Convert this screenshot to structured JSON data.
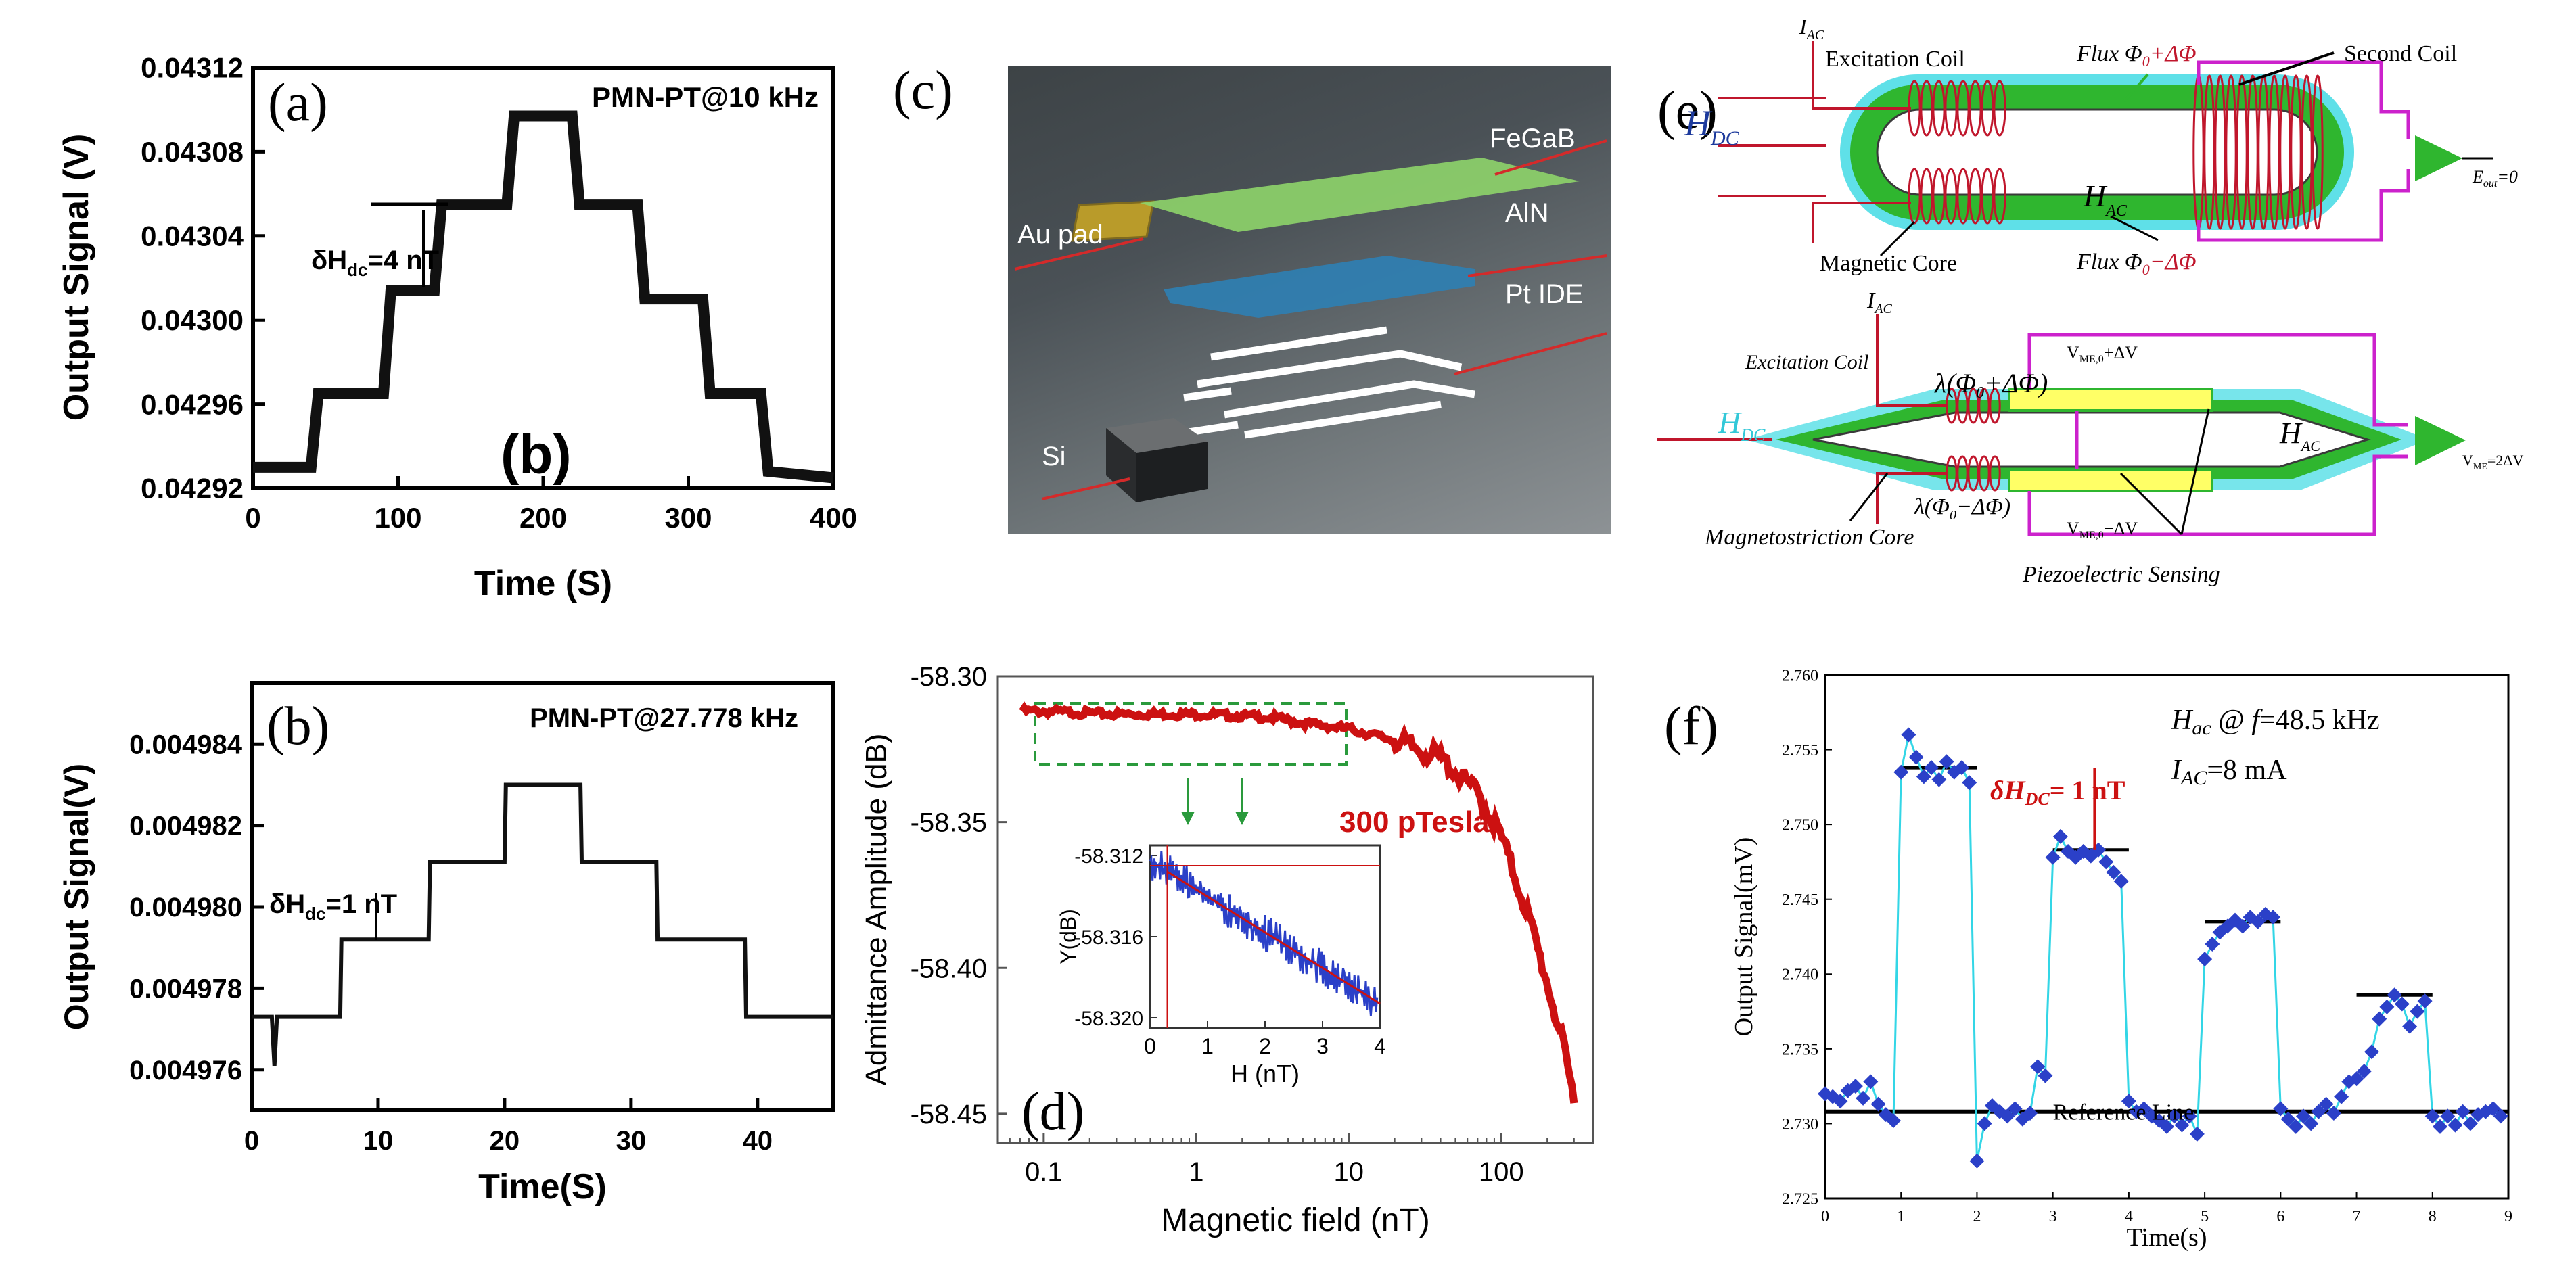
{
  "colors": {
    "axis": "#000000",
    "trace_black": "#111111",
    "trace_red": "#cc1111",
    "trace_blue": "#2b40c8",
    "trace_cyan": "#33d6e6",
    "dash_green": "#2a9a3c",
    "coil_red": "#c0162c",
    "core_green": "#2fb62f",
    "magenta": "#cc22cc"
  },
  "panel_a": {
    "label": "(a)",
    "annotation": "PMN-PT@10 kHz",
    "step_label": "δH",
    "step_sub": "dc",
    "step_value": "=4 nT",
    "bold_label": "(b)",
    "xlabel": "Time (S)",
    "ylabel": "Output Signal (V)"
  },
  "panel_b": {
    "label": "(b)",
    "annotation": "PMN-PT@27.778 kHz",
    "step_label": "δH",
    "step_sub": "dc",
    "step_value": "=1 nT",
    "xlabel": "Time(S)",
    "ylabel": "Output Signal(V)"
  },
  "panel_c": {
    "label": "(c)",
    "layers": [
      "FeGaB",
      "AlN",
      "Pt IDE",
      "Au pad",
      "Si"
    ]
  },
  "panel_d": {
    "label": "(d)",
    "annotation": "300 pTesla",
    "xlabel": "Magnetic field (nT)",
    "ylabel": "Admittance Amplitude (dB)",
    "inset": {
      "xlabel": "H (nT)",
      "ylabel": "Y(dB)",
      "x_ticks": [
        "0",
        "1",
        "2",
        "3",
        "4"
      ],
      "y_ticks": [
        "-58.312",
        "-58.316",
        "-58.320"
      ]
    }
  },
  "panel_e": {
    "label": "(e)",
    "top": {
      "iac": "I",
      "iac_sub": "AC",
      "excitation_coil": "Excitation Coil",
      "flux_plus": "Flux Φ",
      "flux_plus_tail": "+ΔΦ",
      "second_coil": "Second Coil",
      "hdc": "H",
      "hdc_sub": "DC",
      "hac": "H",
      "hac_sub": "AC",
      "eout": "E",
      "eout_sub": "out",
      "eout_tail": "=0",
      "magnetic_core": "Magnetic Core",
      "flux_minus": "Flux Φ",
      "flux_minus_tail": "−ΔΦ",
      "phi_sub": "0"
    },
    "bottom": {
      "iac": "I",
      "iac_sub": "AC",
      "excitation_coil": "Excitation Coil",
      "lambda_plus": "λ(Φ",
      "lambda_plus_tail": "+ΔΦ)",
      "lambda_minus": "λ(Φ",
      "lambda_minus_tail": "−ΔΦ)",
      "phi_sub": "0",
      "v_plus": "V",
      "v_plus_sub": "ME,0",
      "v_plus_tail": "+ΔV",
      "v_minus": "V",
      "v_minus_sub": "ME,0",
      "v_minus_tail": "−ΔV",
      "hdc": "H",
      "hdc_sub": "DC",
      "hac": "H",
      "hac_sub": "AC",
      "vout": "V",
      "vout_sub": "ME",
      "vout_tail": "=2ΔV",
      "core": "Magnetostriction Core",
      "sensing": "Piezoelectric Sensing"
    }
  },
  "panel_f": {
    "label": "(f)",
    "hac_line_h": "H",
    "hac_line_sub": "ac",
    "hac_line_tail": " @ ",
    "hac_line_f": "f",
    "hac_line_value": "=48.5 kHz",
    "iac_line_i": "I",
    "iac_line_sub": "AC",
    "iac_line_value": "=8 mA",
    "step_prefix": "δH",
    "step_sub": "DC",
    "step_value": "= 1 nT",
    "reference": "Reference Line",
    "xlabel": "Time(s)",
    "ylabel": "Output Signal(mV)"
  },
  "chart_data": [
    {
      "id": "a",
      "type": "line",
      "title": "PMN-PT@10 kHz",
      "xlabel": "Time (S)",
      "ylabel": "Output Signal (V)",
      "xlim": [
        0,
        400
      ],
      "ylim": [
        0.04292,
        0.04312
      ],
      "x_ticks": [
        0,
        100,
        200,
        300,
        400
      ],
      "x_tick_labels": [
        "0",
        "100",
        "200",
        "300",
        "400"
      ],
      "y_ticks": [
        0.04292,
        0.04296,
        0.043,
        0.04304,
        0.04308,
        0.04312
      ],
      "y_tick_labels": [
        "0.04292",
        "0.04296",
        "0.04300",
        "0.04304",
        "0.04308",
        "0.04312"
      ],
      "x": [
        0,
        40,
        45,
        90,
        95,
        125,
        130,
        150,
        155,
        175,
        180,
        220,
        225,
        265,
        270,
        310,
        315,
        350,
        355,
        400
      ],
      "y": [
        0.04293,
        0.04293,
        0.042965,
        0.042965,
        0.043014,
        0.043014,
        0.043055,
        0.043055,
        0.043055,
        0.043055,
        0.043097,
        0.043097,
        0.043055,
        0.043055,
        0.04301,
        0.04301,
        0.042965,
        0.042965,
        0.042928,
        0.042925
      ]
    },
    {
      "id": "b",
      "type": "line",
      "title": "PMN-PT@27.778 kHz",
      "xlabel": "Time(S)",
      "ylabel": "Output Signal(V)",
      "xlim": [
        0,
        46
      ],
      "ylim": [
        0.004975,
        0.0049855
      ],
      "x_ticks": [
        0,
        10,
        20,
        30,
        40
      ],
      "x_tick_labels": [
        "0",
        "10",
        "20",
        "30",
        "40"
      ],
      "y_ticks": [
        0.004976,
        0.004978,
        0.00498,
        0.004982,
        0.004984
      ],
      "y_tick_labels": [
        "0.004976",
        "0.004978",
        "0.004980",
        "0.004982",
        "0.004984"
      ],
      "x": [
        0,
        1.6,
        1.8,
        2.0,
        7,
        7.1,
        14,
        14.1,
        20,
        20.1,
        26,
        26.1,
        32,
        32.1,
        39,
        39.1,
        46
      ],
      "y": [
        0.0049773,
        0.0049773,
        0.0049761,
        0.0049773,
        0.0049773,
        0.0049792,
        0.0049792,
        0.0049811,
        0.0049811,
        0.004983,
        0.004983,
        0.0049811,
        0.0049811,
        0.0049792,
        0.0049792,
        0.0049773,
        0.0049773
      ]
    },
    {
      "id": "d",
      "type": "line",
      "xlabel": "Magnetic field (nT)",
      "ylabel": "Admittance Amplitude (dB)",
      "xscale": "log",
      "xlim": [
        0.05,
        400
      ],
      "ylim": [
        -58.46,
        -58.3
      ],
      "x_ticks": [
        0.1,
        1,
        10,
        100
      ],
      "x_tick_labels": [
        "0.1",
        "1",
        "10",
        "100"
      ],
      "y_ticks": [
        -58.3,
        -58.35,
        -58.4,
        -58.45
      ],
      "y_tick_labels": [
        "-58.30",
        "-58.35",
        "-58.40",
        "-58.45"
      ],
      "annotation": "300 pTesla",
      "x": [
        0.065,
        0.1,
        0.3,
        1,
        3,
        5,
        10,
        20,
        40,
        70,
        100,
        150,
        200,
        250,
        300
      ],
      "y": [
        -58.312,
        -58.312,
        -58.313,
        -58.313,
        -58.314,
        -58.316,
        -58.318,
        -58.322,
        -58.328,
        -58.34,
        -58.355,
        -58.382,
        -58.405,
        -58.425,
        -58.445
      ],
      "inset": {
        "xlabel": "H (nT)",
        "ylabel": "Y(dB)",
        "xlim": [
          0,
          4
        ],
        "ylim": [
          -58.3205,
          -58.3115
        ],
        "x_ticks": [
          0,
          1,
          2,
          3,
          4
        ],
        "x_tick_labels": [
          "0",
          "1",
          "2",
          "3",
          "4"
        ],
        "y_ticks": [
          -58.312,
          -58.316,
          -58.32
        ],
        "y_tick_labels": [
          "-58.312",
          "-58.316",
          "-58.320"
        ],
        "fit_x": [
          0.3,
          4.0
        ],
        "fit_y": [
          -58.3128,
          -58.3193
        ],
        "threshold_x": 0.3,
        "threshold_y": -58.3125
      }
    },
    {
      "id": "f",
      "type": "scatter",
      "xlabel": "Time(s)",
      "ylabel": "Output Signal(mV)",
      "xlim": [
        0,
        9
      ],
      "ylim": [
        2.725,
        2.76
      ],
      "x_ticks": [
        0,
        1,
        2,
        3,
        4,
        5,
        6,
        7,
        8,
        9
      ],
      "x_tick_labels": [
        "0",
        "1",
        "2",
        "3",
        "4",
        "5",
        "6",
        "7",
        "8",
        "9"
      ],
      "y_ticks": [
        2.725,
        2.73,
        2.735,
        2.74,
        2.745,
        2.75,
        2.755,
        2.76
      ],
      "y_tick_labels": [
        "2.725",
        "2.730",
        "2.735",
        "2.740",
        "2.745",
        "2.750",
        "2.755",
        "2.760"
      ],
      "reference_y": 2.7308,
      "levels": [
        {
          "x": [
            1.0,
            2.0
          ],
          "y": 2.7538
        },
        {
          "x": [
            3.0,
            4.0
          ],
          "y": 2.7483
        },
        {
          "x": [
            5.0,
            6.0
          ],
          "y": 2.7435
        },
        {
          "x": [
            7.0,
            8.0
          ],
          "y": 2.7386
        }
      ],
      "x": [
        0.0,
        0.1,
        0.2,
        0.3,
        0.4,
        0.5,
        0.6,
        0.7,
        0.8,
        0.9,
        1.0,
        1.1,
        1.2,
        1.3,
        1.4,
        1.5,
        1.6,
        1.7,
        1.8,
        1.9,
        2.0,
        2.1,
        2.2,
        2.3,
        2.4,
        2.5,
        2.6,
        2.7,
        2.8,
        2.9,
        3.0,
        3.1,
        3.2,
        3.3,
        3.4,
        3.5,
        3.6,
        3.7,
        3.8,
        3.9,
        4.0,
        4.1,
        4.2,
        4.3,
        4.4,
        4.5,
        4.6,
        4.7,
        4.8,
        4.9,
        5.0,
        5.1,
        5.2,
        5.3,
        5.4,
        5.5,
        5.6,
        5.7,
        5.8,
        5.9,
        6.0,
        6.1,
        6.2,
        6.3,
        6.4,
        6.5,
        6.6,
        6.7,
        6.8,
        6.9,
        7.0,
        7.1,
        7.2,
        7.3,
        7.4,
        7.5,
        7.6,
        7.7,
        7.8,
        7.9,
        8.0,
        8.1,
        8.2,
        8.3,
        8.4,
        8.5,
        8.6,
        8.7,
        8.8,
        8.9
      ],
      "y": [
        2.732,
        2.7318,
        2.7315,
        2.7322,
        2.7325,
        2.7317,
        2.7328,
        2.7313,
        2.7306,
        2.7302,
        2.7535,
        2.756,
        2.7545,
        2.7532,
        2.7538,
        2.753,
        2.7542,
        2.7535,
        2.7538,
        2.7528,
        2.7275,
        2.73,
        2.7312,
        2.7308,
        2.7305,
        2.731,
        2.7303,
        2.7307,
        2.7338,
        2.7332,
        2.7478,
        2.7492,
        2.7482,
        2.7478,
        2.7482,
        2.7479,
        2.7483,
        2.7475,
        2.7468,
        2.7462,
        2.7315,
        2.7308,
        2.731,
        2.7305,
        2.7302,
        2.7298,
        2.7305,
        2.7299,
        2.7305,
        2.7293,
        2.741,
        2.742,
        2.7428,
        2.7432,
        2.7436,
        2.7432,
        2.7438,
        2.7435,
        2.744,
        2.7438,
        2.731,
        2.7303,
        2.7298,
        2.7305,
        2.73,
        2.7308,
        2.7313,
        2.7307,
        2.7318,
        2.7328,
        2.733,
        2.7335,
        2.7348,
        2.737,
        2.7378,
        2.7386,
        2.738,
        2.7365,
        2.7375,
        2.7382,
        2.7305,
        2.7298,
        2.7305,
        2.7299,
        2.7308,
        2.73,
        2.7306,
        2.7308,
        2.731,
        2.7305
      ]
    }
  ]
}
